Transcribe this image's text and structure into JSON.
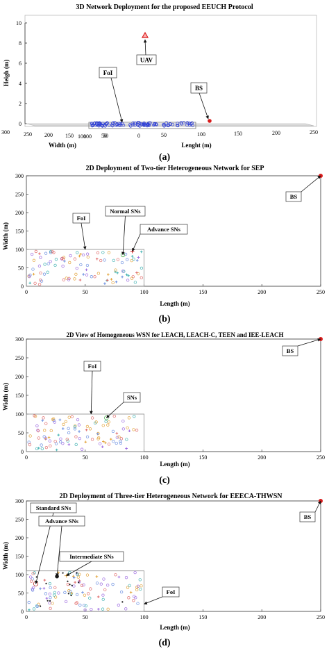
{
  "panels": [
    {
      "id": "a",
      "label": "(a)",
      "chart_data": {
        "type": "scatter",
        "projection": "3d",
        "title": "3D Network Deployment for the proposed EEUCH Protocol",
        "xlabel": "Width (m)",
        "ylabel": "Lenght (m)",
        "zlabel": "Heigh (m)",
        "zlim": [
          0,
          10
        ],
        "zticks": [
          "0",
          "2",
          "4",
          "6",
          "8",
          "10"
        ],
        "width_ticks": [
          "300",
          "250",
          "200",
          "150",
          "100",
          "50"
        ],
        "length_ticks": [
          "100",
          "50",
          "0",
          "50",
          "100",
          "150",
          "200",
          "250"
        ],
        "sensor_count": 100,
        "series": [
          {
            "key": "sensors",
            "color": "#2a3bd6",
            "marker": "circle"
          },
          {
            "key": "bs",
            "color": "#d81b1b",
            "marker": "filled-circle",
            "point": [
              250,
              300,
              0
            ]
          },
          {
            "key": "uav",
            "color": "#d81b1b",
            "marker": "triangle",
            "point": [
              50,
              50,
              9
            ]
          }
        ],
        "annotations": [
          {
            "text": "FoI"
          },
          {
            "text": "UAV"
          },
          {
            "text": "BS"
          }
        ],
        "grid": false
      }
    },
    {
      "id": "b",
      "label": "(b)",
      "chart_data": {
        "type": "scatter",
        "title": "2D Deployment of Two-tier Heterogeneous Network for SEP",
        "xlabel": "Length (m)",
        "ylabel": "Width (m)",
        "xlim": [
          0,
          250
        ],
        "ylim": [
          0,
          300
        ],
        "xticks": [
          0,
          50,
          100,
          150,
          200,
          250
        ],
        "yticks": [
          0,
          50,
          100,
          150,
          200,
          250,
          300
        ],
        "foi": [
          100,
          100
        ],
        "sensor_count": 100,
        "series": [
          {
            "key": "normal",
            "color": "#e06b6b",
            "marker": "circle"
          },
          {
            "key": "advance",
            "color": "#e2a33a",
            "marker": "plus"
          },
          {
            "key": "bs",
            "color": "#d81b1b",
            "marker": "filled-circle",
            "points": [
              [
                250,
                300
              ]
            ]
          },
          {
            "key": "normal-highlight",
            "color": "#3aa83a",
            "marker": "circle",
            "points": [
              [
                82,
                85
              ]
            ]
          },
          {
            "key": "advance-highlight",
            "color": "#d81b1b",
            "marker": "plus",
            "points": [
              [
                90,
                95
              ]
            ]
          }
        ],
        "annotations": [
          {
            "text": "FoI",
            "target": [
              50,
              100
            ]
          },
          {
            "text": "Normal SNs",
            "target": [
              82,
              85
            ]
          },
          {
            "text": "Advance SNs",
            "target": [
              90,
              95
            ]
          },
          {
            "text": "BS",
            "target": [
              250,
              300
            ]
          }
        ],
        "grid": false
      }
    },
    {
      "id": "c",
      "label": "(c)",
      "chart_data": {
        "type": "scatter",
        "title": "2D View of Homogeneous WSN for LEACH, LEACH-C, TEEN and IEE-LEACH",
        "xlabel": "Length (m)",
        "ylabel": "Width (m)",
        "xlim": [
          0,
          250
        ],
        "ylim": [
          0,
          300
        ],
        "xticks": [
          0,
          50,
          100,
          150,
          200,
          250
        ],
        "yticks": [
          0,
          50,
          100,
          150,
          200,
          250,
          300
        ],
        "foi": [
          100,
          100
        ],
        "sensor_count": 100,
        "series": [
          {
            "key": "sensors",
            "color": "#e06b6b",
            "marker": "circle"
          },
          {
            "key": "bs",
            "color": "#d81b1b",
            "marker": "filled-circle",
            "points": [
              [
                250,
                300
              ]
            ]
          },
          {
            "key": "highlight",
            "color": "#3aa83a",
            "marker": "circle",
            "points": [
              [
                68,
                90
              ]
            ]
          }
        ],
        "annotations": [
          {
            "text": "FoI",
            "target": [
              55,
              100
            ]
          },
          {
            "text": "SNs",
            "target": [
              68,
              90
            ]
          },
          {
            "text": "BS",
            "target": [
              250,
              300
            ]
          }
        ],
        "grid": false
      }
    },
    {
      "id": "d",
      "label": "(d)",
      "chart_data": {
        "type": "scatter",
        "title": "2D Deployment of Three-tier Heterogeneous Network for EEECA-THWSN",
        "xlabel": "Length (m)",
        "ylabel": "Width (m)",
        "xlim": [
          0,
          250
        ],
        "ylim": [
          0,
          300
        ],
        "xticks": [
          0,
          50,
          100,
          150,
          200,
          250
        ],
        "yticks": [
          0,
          50,
          100,
          150,
          200,
          250,
          300
        ],
        "foi": [
          100,
          110
        ],
        "sensor_count": 100,
        "series": [
          {
            "key": "standard",
            "color": "#e06b6b",
            "marker": "circle"
          },
          {
            "key": "advance",
            "color": "#1a1a1a",
            "marker": "filled-circle"
          },
          {
            "key": "intermediate",
            "color": "#e2a33a",
            "marker": "plus"
          },
          {
            "key": "bs",
            "color": "#d81b1b",
            "marker": "filled-circle",
            "points": [
              [
                250,
                300
              ]
            ]
          },
          {
            "key": "standard-highlight",
            "color": "#b01010",
            "marker": "circle",
            "points": [
              [
                8,
                75
              ]
            ]
          },
          {
            "key": "advance-highlight",
            "color": "#1a1a1a",
            "marker": "filled-circle",
            "points": [
              [
                26,
                95
              ]
            ]
          },
          {
            "key": "intermediate-highlight",
            "color": "#e2a33a",
            "marker": "plus",
            "points": [
              [
                34,
                97
              ]
            ]
          }
        ],
        "annotations": [
          {
            "text": "Standard SNs",
            "target": [
              8,
              75
            ]
          },
          {
            "text": "Advance SNs",
            "target": [
              26,
              95
            ]
          },
          {
            "text": "Intermediate SNs",
            "target": [
              34,
              97
            ]
          },
          {
            "text": "FoI",
            "target": [
              100,
              20
            ]
          },
          {
            "text": "BS",
            "target": [
              250,
              300
            ]
          }
        ],
        "grid": false
      }
    }
  ]
}
